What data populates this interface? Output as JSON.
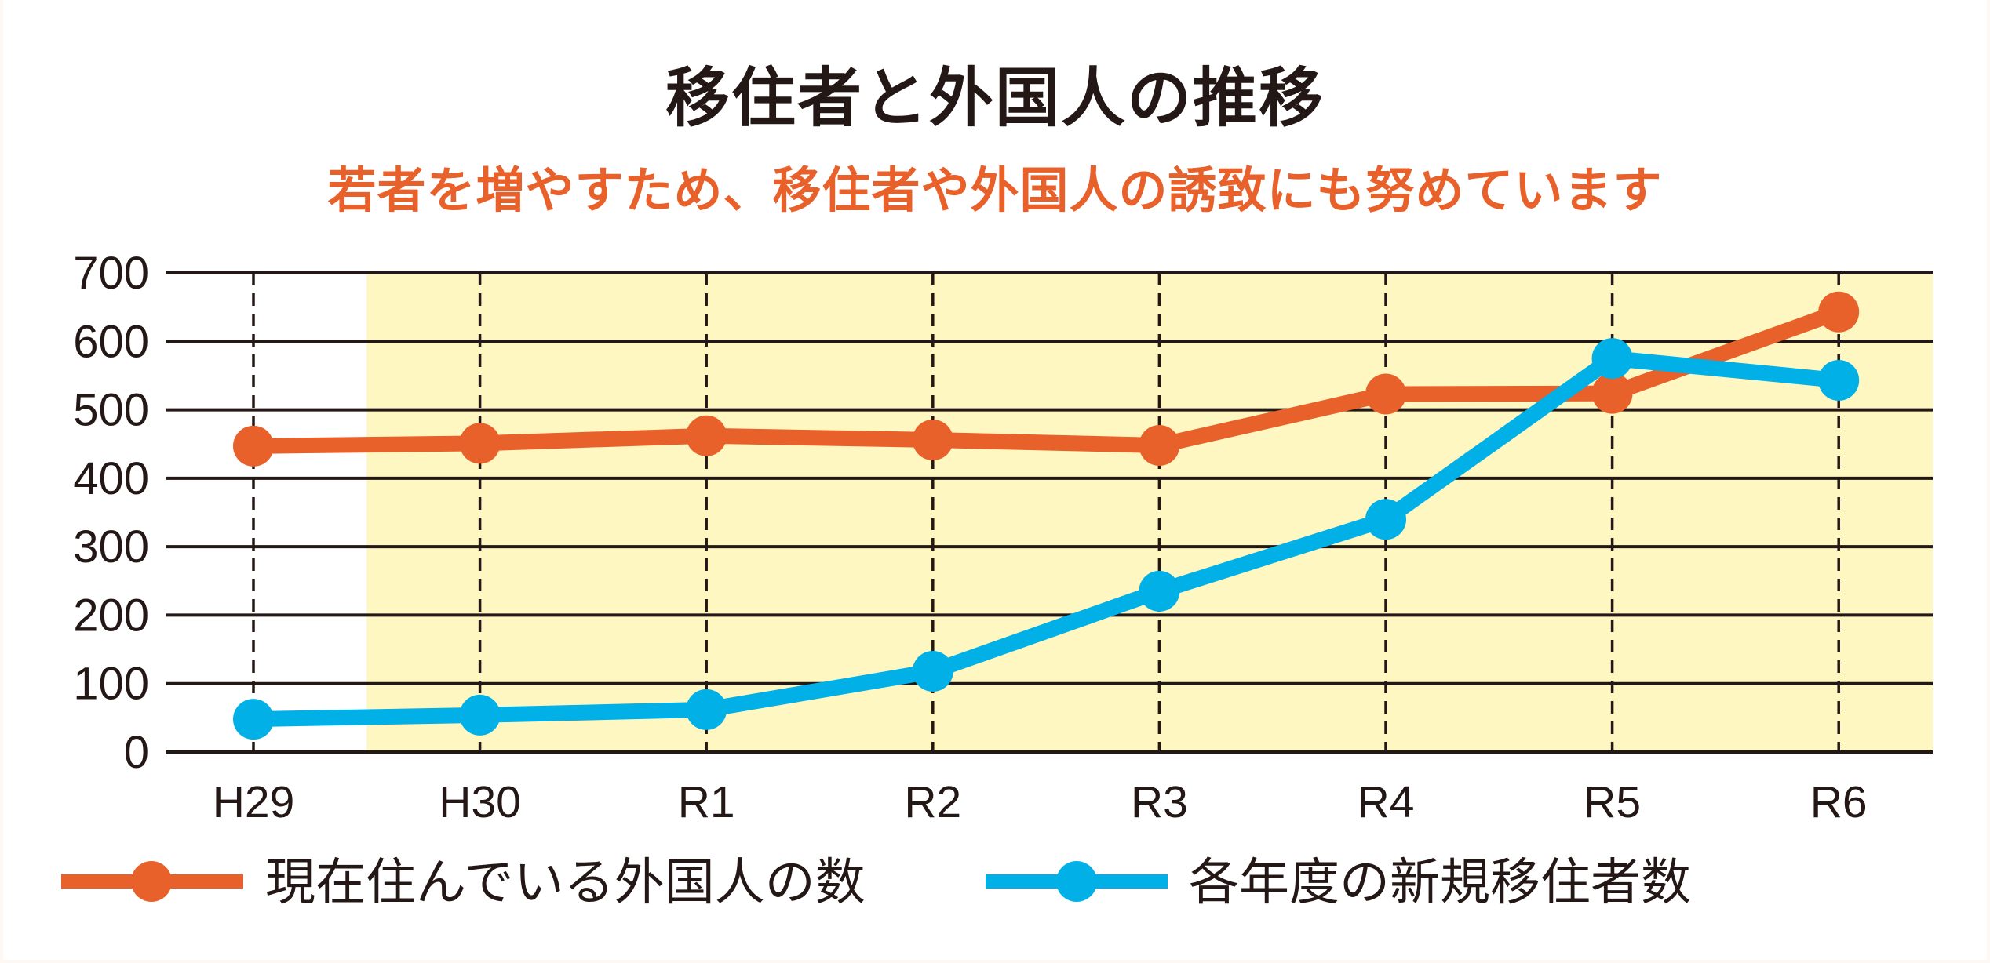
{
  "header": {
    "title": "移住者と外国人の推移",
    "subtitle": "若者を増やすため、移住者や外国人の誘致にも努めています"
  },
  "colors": {
    "orange": "#e8602a",
    "blue": "#00b0e6",
    "band": "#fff7c1",
    "grid": "#231815",
    "text": "#231815"
  },
  "legend": {
    "items": [
      {
        "label": "現在住んでいる外国人の数",
        "color": "#e8602a"
      },
      {
        "label": "各年度の新規移住者数",
        "color": "#00b0e6"
      }
    ]
  },
  "chart_data": {
    "type": "line",
    "title": "移住者と外国人の推移",
    "subtitle": "若者を増やすため、移住者や外国人の誘致にも努めています",
    "xlabel": "",
    "ylabel": "",
    "categories": [
      "H29",
      "H30",
      "R1",
      "R2",
      "R3",
      "R4",
      "R5",
      "R6"
    ],
    "yticks": [
      0,
      100,
      200,
      300,
      400,
      500,
      600,
      700
    ],
    "ylim": [
      0,
      700
    ],
    "grid": true,
    "legend_position": "bottom",
    "highlight_band": {
      "from_category_index": 0.5,
      "to": "end",
      "color": "#fff7c1"
    },
    "series": [
      {
        "name": "現在住んでいる外国人の数",
        "color": "#e8602a",
        "values": [
          447,
          451,
          462,
          456,
          448,
          523,
          524,
          643
        ]
      },
      {
        "name": "各年度の新規移住者数",
        "color": "#00b0e6",
        "values": [
          48,
          54,
          62,
          118,
          235,
          340,
          575,
          543
        ]
      }
    ]
  }
}
